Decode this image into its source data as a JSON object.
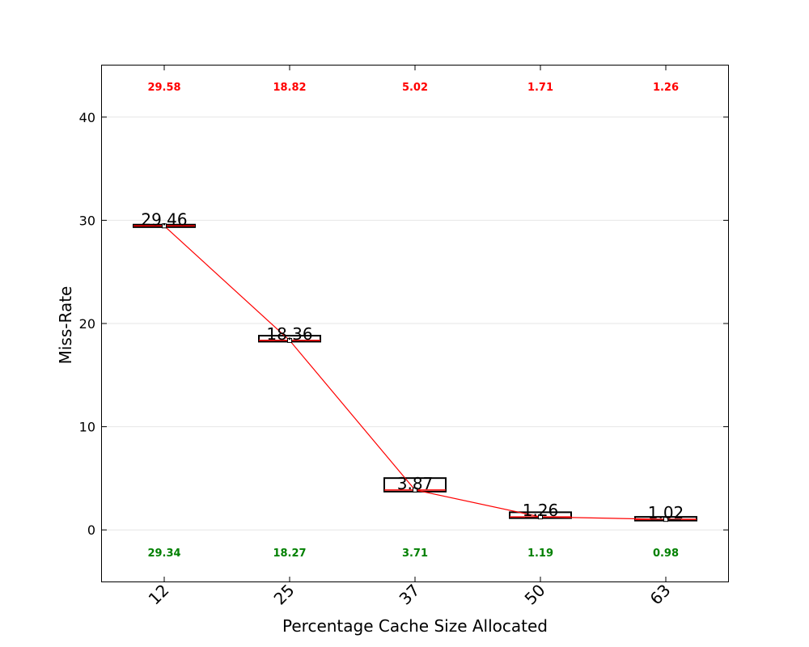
{
  "chart_data": {
    "type": "box",
    "xlabel": "Percentage Cache Size Allocated",
    "ylabel": "Miss-Rate",
    "ylim": [
      -5,
      45
    ],
    "yticks": [
      0,
      10,
      20,
      30,
      40
    ],
    "categories": [
      "12",
      "25",
      "37",
      "50",
      "63"
    ],
    "medians": [
      29.46,
      18.36,
      3.87,
      1.26,
      1.02
    ],
    "median_labels": [
      "29.46",
      "18.36",
      "3.87",
      "1.26",
      "1.02"
    ],
    "max_values": [
      29.58,
      18.82,
      5.02,
      1.71,
      1.26
    ],
    "max_labels": [
      "29.58",
      "18.82",
      "5.02",
      "1.71",
      "1.26"
    ],
    "min_values": [
      29.34,
      18.27,
      3.71,
      1.19,
      0.98
    ],
    "min_labels": [
      "29.34",
      "18.27",
      "3.71",
      "1.19",
      "0.98"
    ],
    "grid": "horizontal",
    "colors": {
      "median_line": "#ff0000",
      "max_label": "#ff0000",
      "min_label": "#008000",
      "box": "#000000",
      "grid": "#e6e6e6"
    }
  }
}
